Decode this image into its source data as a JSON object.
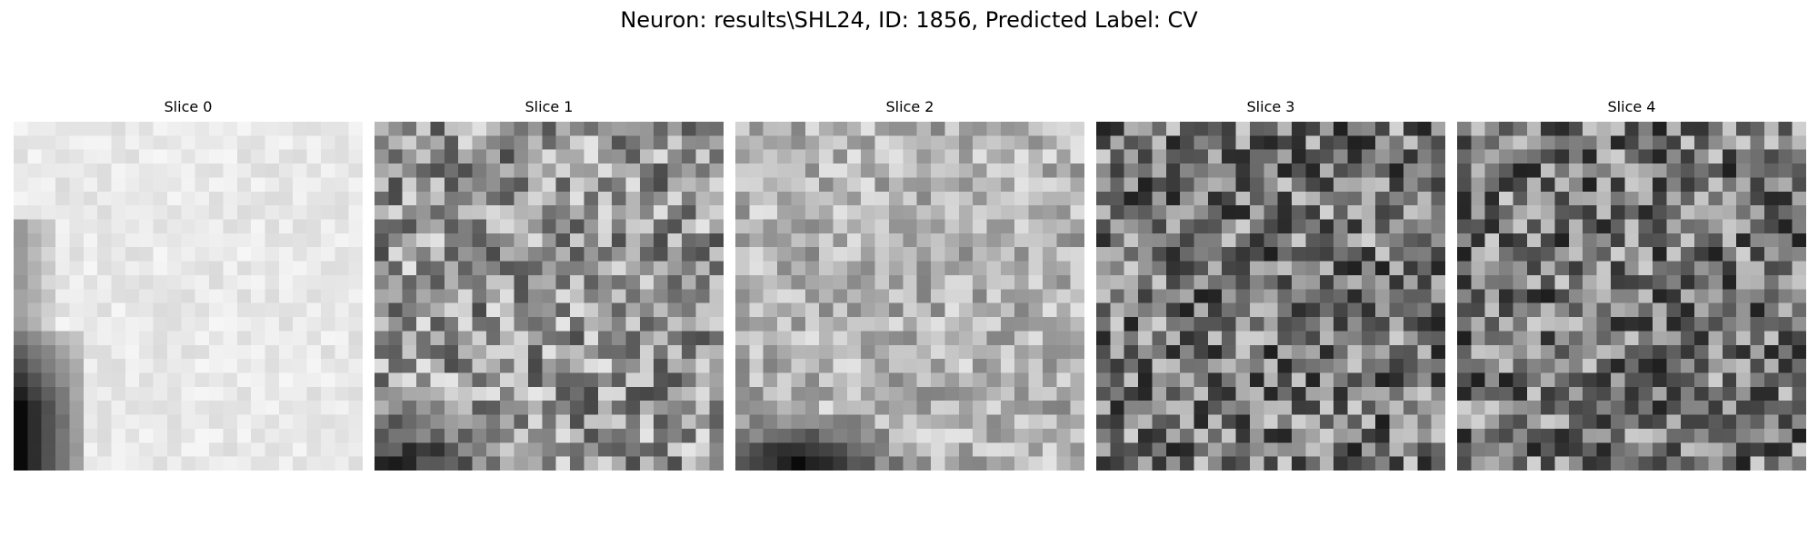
{
  "figure": {
    "title": "Neuron: results\\SHL24, ID: 1856, Predicted Label: CV"
  },
  "slices": [
    {
      "label": "Slice 0",
      "texture": "bright",
      "dark_corner": "bottom-left-tall"
    },
    {
      "label": "Slice 1",
      "texture": "mid-noise",
      "dark_corner": "bottom-left-band"
    },
    {
      "label": "Slice 2",
      "texture": "light-noise",
      "dark_corner": "bottom-left-blob"
    },
    {
      "label": "Slice 3",
      "texture": "dark-noise",
      "dark_corner": "none"
    },
    {
      "label": "Slice 4",
      "texture": "dark-noise",
      "dark_corner": "none"
    }
  ],
  "colormap": "gray"
}
